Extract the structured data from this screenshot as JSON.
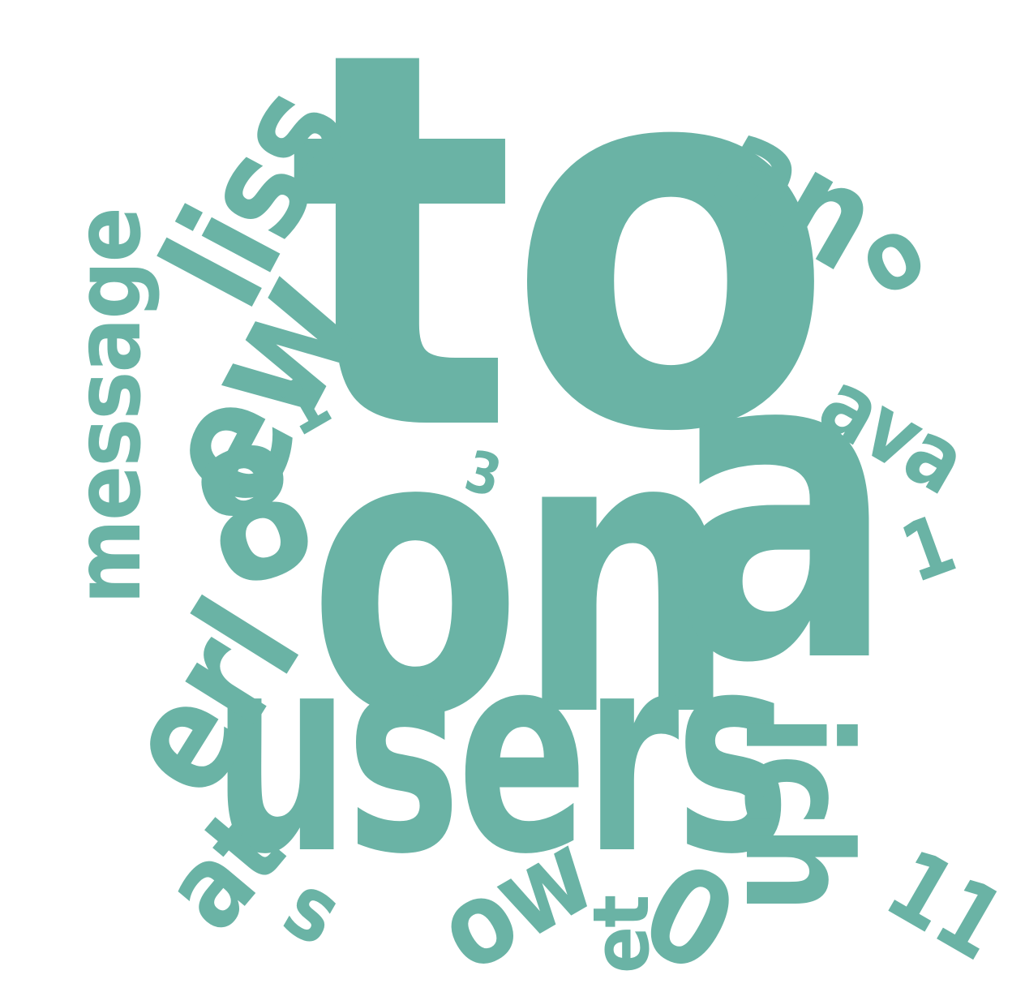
{
  "color": "#6AB3A5",
  "words": [
    {
      "text": "to",
      "name": "word-to"
    },
    {
      "text": "on",
      "name": "word-on"
    },
    {
      "text": "a",
      "name": "word-a"
    },
    {
      "text": "users",
      "name": "word-users"
    },
    {
      "text": "ew",
      "name": "word-ew"
    },
    {
      "text": "liss",
      "name": "word-liss"
    },
    {
      "text": "message",
      "name": "word-message"
    },
    {
      "text": "an",
      "name": "word-an"
    },
    {
      "text": "erl",
      "name": "word-erl"
    },
    {
      "text": "8",
      "name": "word-8"
    },
    {
      "text": "ich",
      "name": "word-ich"
    },
    {
      "text": "at",
      "name": "word-at"
    },
    {
      "text": "ow",
      "name": "word-ow"
    },
    {
      "text": "0",
      "name": "word-0-bottom"
    },
    {
      "text": "ava",
      "name": "word-ava"
    },
    {
      "text": "o",
      "name": "word-o"
    },
    {
      "text": "11",
      "name": "word-11"
    },
    {
      "text": "et",
      "name": "word-et"
    },
    {
      "text": "s",
      "name": "word-s"
    },
    {
      "text": "1",
      "name": "word-1"
    },
    {
      "text": "1",
      "name": "word-1-right"
    },
    {
      "text": "3",
      "name": "word-3"
    }
  ]
}
